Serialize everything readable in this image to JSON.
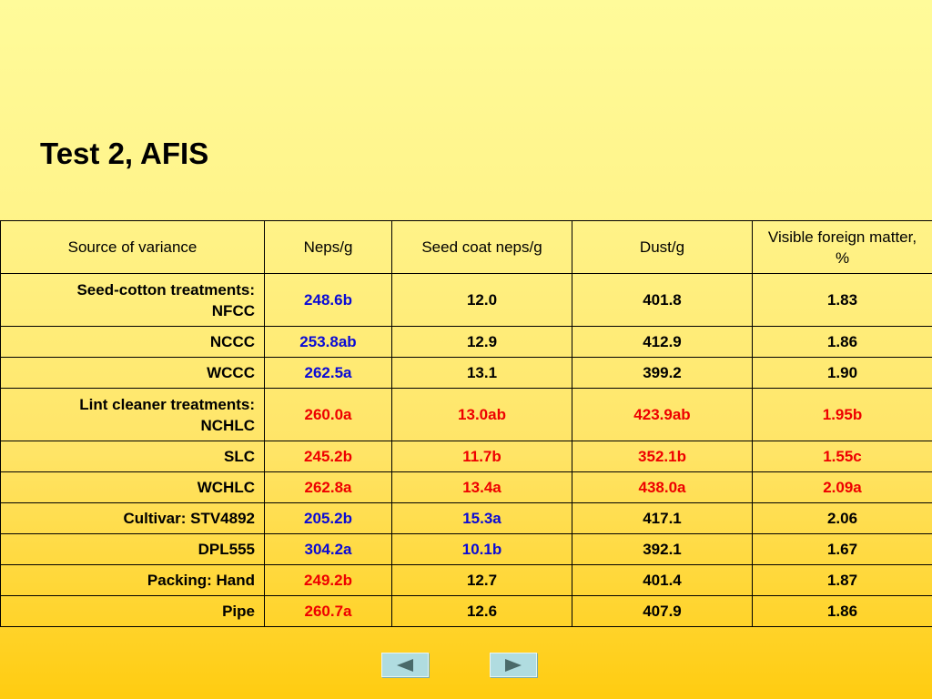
{
  "title": "Test 2, AFIS",
  "table": {
    "headers": [
      "Source of variance",
      "Neps/g",
      "Seed coat neps/g",
      "Dust/g",
      "Visible foreign matter, %"
    ],
    "rows": [
      {
        "source": [
          "Seed-cotton treatments:",
          "NFCC"
        ],
        "cells": [
          {
            "v": "248.6b",
            "c": "blue"
          },
          {
            "v": "12.0",
            "c": "black"
          },
          {
            "v": "401.8",
            "c": "black"
          },
          {
            "v": "1.83",
            "c": "black"
          }
        ]
      },
      {
        "source": [
          "NCCC"
        ],
        "cells": [
          {
            "v": "253.8ab",
            "c": "blue"
          },
          {
            "v": "12.9",
            "c": "black"
          },
          {
            "v": "412.9",
            "c": "black"
          },
          {
            "v": "1.86",
            "c": "black"
          }
        ]
      },
      {
        "source": [
          "WCCC"
        ],
        "cells": [
          {
            "v": "262.5a",
            "c": "blue"
          },
          {
            "v": "13.1",
            "c": "black"
          },
          {
            "v": "399.2",
            "c": "black"
          },
          {
            "v": "1.90",
            "c": "black"
          }
        ]
      },
      {
        "source": [
          "Lint cleaner treatments:",
          "NCHLC"
        ],
        "cells": [
          {
            "v": "260.0a",
            "c": "red"
          },
          {
            "v": "13.0ab",
            "c": "red"
          },
          {
            "v": "423.9ab",
            "c": "red"
          },
          {
            "v": "1.95b",
            "c": "red"
          }
        ]
      },
      {
        "source": [
          "SLC"
        ],
        "cells": [
          {
            "v": "245.2b",
            "c": "red"
          },
          {
            "v": "11.7b",
            "c": "red"
          },
          {
            "v": "352.1b",
            "c": "red"
          },
          {
            "v": "1.55c",
            "c": "red"
          }
        ]
      },
      {
        "source": [
          "WCHLC"
        ],
        "cells": [
          {
            "v": "262.8a",
            "c": "red"
          },
          {
            "v": "13.4a",
            "c": "red"
          },
          {
            "v": "438.0a",
            "c": "red"
          },
          {
            "v": "2.09a",
            "c": "red"
          }
        ]
      },
      {
        "source": [
          "Cultivar: STV4892"
        ],
        "cells": [
          {
            "v": "205.2b",
            "c": "blue"
          },
          {
            "v": "15.3a",
            "c": "blue"
          },
          {
            "v": "417.1",
            "c": "black"
          },
          {
            "v": "2.06",
            "c": "black"
          }
        ]
      },
      {
        "source": [
          "DPL555"
        ],
        "cells": [
          {
            "v": "304.2a",
            "c": "blue"
          },
          {
            "v": "10.1b",
            "c": "blue"
          },
          {
            "v": "392.1",
            "c": "black"
          },
          {
            "v": "1.67",
            "c": "black"
          }
        ]
      },
      {
        "source": [
          "Packing: Hand"
        ],
        "cells": [
          {
            "v": "249.2b",
            "c": "red"
          },
          {
            "v": "12.7",
            "c": "black"
          },
          {
            "v": "401.4",
            "c": "black"
          },
          {
            "v": "1.87",
            "c": "black"
          }
        ]
      },
      {
        "source": [
          "Pipe"
        ],
        "cells": [
          {
            "v": "260.7a",
            "c": "red"
          },
          {
            "v": "12.6",
            "c": "black"
          },
          {
            "v": "407.9",
            "c": "black"
          },
          {
            "v": "1.86",
            "c": "black"
          }
        ]
      }
    ]
  },
  "nav": {
    "prev_icon": "triangle-left-icon",
    "next_icon": "triangle-right-icon"
  },
  "colors": {
    "blue": "#0a0ad6",
    "red": "#ee0000",
    "black": "#000000",
    "nav_button": "#b0dce0",
    "nav_arrow": "#4a6a6a"
  }
}
